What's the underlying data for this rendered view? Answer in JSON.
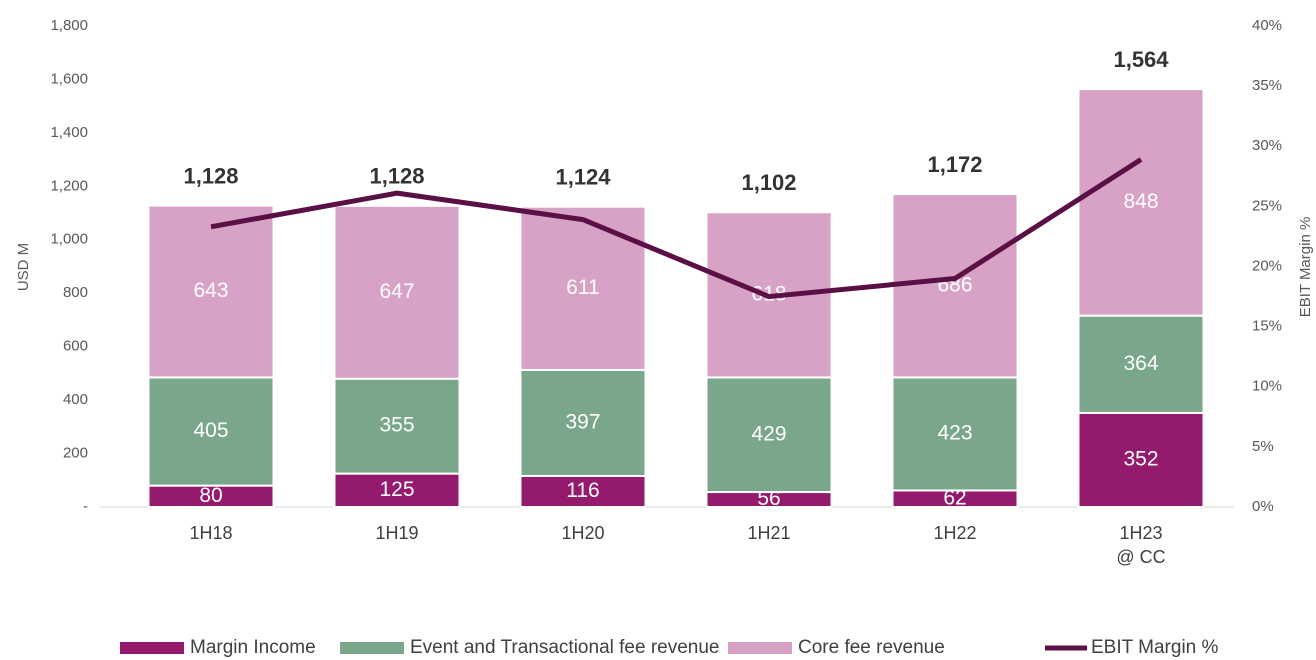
{
  "chart_data": {
    "type": "bar",
    "categories": [
      "1H18",
      "1H19",
      "1H20",
      "1H21",
      "1H22",
      "1H23\n@ CC"
    ],
    "series": [
      {
        "name": "Margin Income",
        "color": "#931a6d",
        "values": [
          80,
          125,
          116,
          56,
          62,
          352
        ]
      },
      {
        "name": "Event and Transactional fee revenue",
        "color": "#7aa78c",
        "values": [
          405,
          355,
          397,
          429,
          423,
          364
        ]
      },
      {
        "name": "Core fee revenue",
        "color": "#d8a2c6",
        "values": [
          643,
          647,
          611,
          618,
          686,
          848
        ]
      },
      {
        "name": "EBIT Margin %",
        "color": "#5a0f45",
        "type": "line",
        "axis": "y2",
        "values": [
          23.3,
          26.1,
          23.9,
          17.5,
          19.0,
          28.9
        ]
      }
    ],
    "totals": [
      1128,
      1128,
      1124,
      1102,
      1172,
      1564
    ],
    "total_labels": [
      "1,128",
      "1,128",
      "1,124",
      "1,102",
      "1,172",
      "1,564"
    ],
    "ylabel": "USD M",
    "y2label": "EBIT Margin %",
    "ylim": [
      0,
      1800
    ],
    "yticks": [
      {
        "value": 0,
        "label": "-"
      },
      200,
      400,
      600,
      800,
      {
        "value": 1000,
        "label": "1,000"
      },
      {
        "value": 1200,
        "label": "1,200"
      },
      {
        "value": 1400,
        "label": "1,400"
      },
      {
        "value": 1600,
        "label": "1,600"
      },
      {
        "value": 1800,
        "label": "1,800"
      }
    ],
    "y2lim": [
      0,
      40
    ],
    "y2ticks": [
      {
        "value": 0,
        "label": "0%"
      },
      {
        "value": 5,
        "label": "5%"
      },
      {
        "value": 10,
        "label": "10%"
      },
      {
        "value": 15,
        "label": "15%"
      },
      {
        "value": 20,
        "label": "20%"
      },
      {
        "value": 25,
        "label": "25%"
      },
      {
        "value": 30,
        "label": "30%"
      },
      {
        "value": 35,
        "label": "35%"
      },
      {
        "value": 40,
        "label": "40%"
      }
    ],
    "grid": false,
    "legend": "bottom"
  }
}
